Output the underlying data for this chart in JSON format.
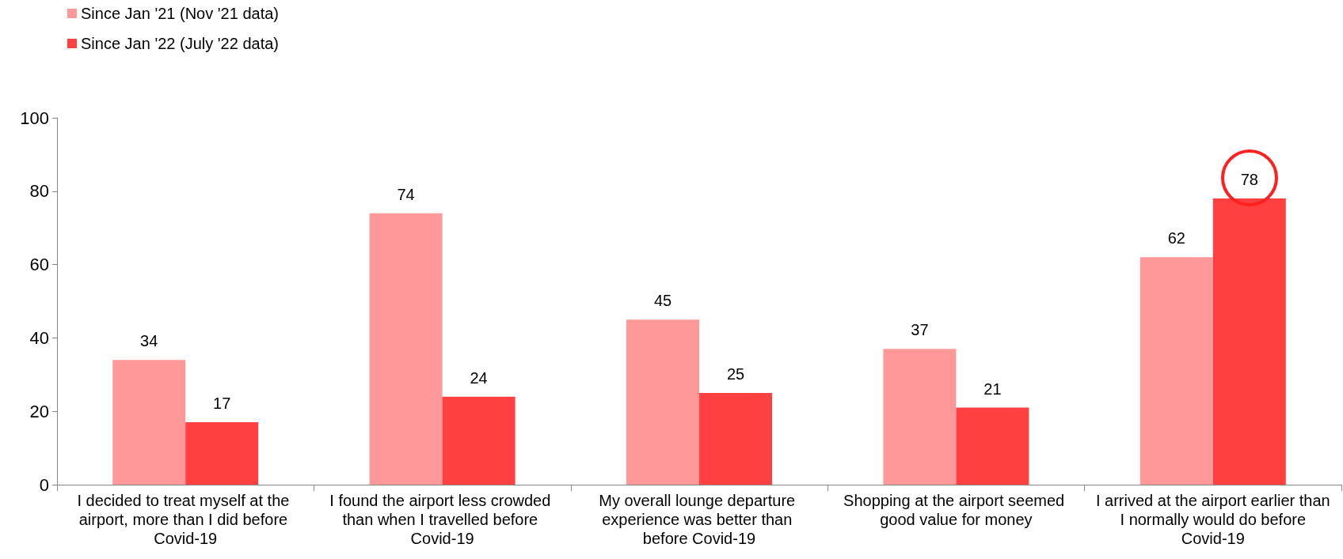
{
  "chart_data": {
    "type": "bar",
    "categories": [
      "I decided to treat myself at the airport, more than I did before Covid-19",
      "I found the airport less crowded than when I travelled before Covid-19",
      "My overall lounge departure experience was better than before Covid-19",
      "Shopping at the airport seemed good value for money",
      "I arrived at the airport earlier than I normally would do before Covid-19"
    ],
    "series": [
      {
        "name": "Since Jan '21 (Nov '21 data)",
        "color": "#ff9999",
        "values": [
          34,
          74,
          45,
          37,
          62
        ]
      },
      {
        "name": "Since Jan '22 (July '22 data)",
        "color": "#ff4040",
        "values": [
          17,
          24,
          25,
          21,
          78
        ]
      }
    ],
    "ylim": [
      0,
      100
    ],
    "yticks": [
      0,
      20,
      40,
      60,
      80,
      100
    ],
    "grid": false,
    "legend": "top left",
    "data_labels": true
  }
}
